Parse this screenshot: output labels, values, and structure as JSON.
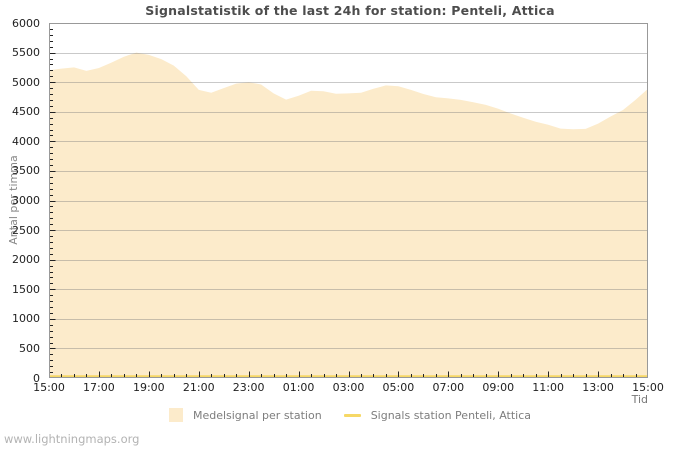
{
  "chart_data": {
    "type": "area",
    "title": "Signalstatistik of the last 24h for station: Penteli, Attica",
    "xlabel": "Tid",
    "ylabel": "Antal per timma",
    "ylim": [
      0,
      6000
    ],
    "y_tick_step": 500,
    "y_minor_tick_step": 100,
    "x_tick_labels": [
      "15:00",
      "17:00",
      "19:00",
      "21:00",
      "23:00",
      "01:00",
      "03:00",
      "05:00",
      "07:00",
      "09:00",
      "11:00",
      "13:00",
      "15:00"
    ],
    "x_span_hours": 24,
    "x_minor_tick_hours": 0.5,
    "grid": "horizontal",
    "legend_position": "bottom-center",
    "x_hours_from_start": [
      0,
      0.5,
      1,
      1.5,
      2,
      2.5,
      3,
      3.5,
      4,
      4.5,
      5,
      5.5,
      6,
      6.5,
      7,
      7.5,
      8,
      8.5,
      9,
      9.5,
      10,
      10.5,
      11,
      11.5,
      12,
      12.5,
      13,
      13.5,
      14,
      14.5,
      15,
      15.5,
      16,
      16.5,
      17,
      17.5,
      18,
      18.5,
      19,
      19.5,
      20,
      20.5,
      21,
      21.5,
      22,
      22.5,
      23,
      23.5,
      24
    ],
    "series": [
      {
        "name": "Medelsignal per station",
        "type": "area",
        "color": "#FCEBCB",
        "values": [
          5200,
          5230,
          5250,
          5190,
          5240,
          5330,
          5430,
          5500,
          5460,
          5390,
          5280,
          5100,
          4870,
          4820,
          4900,
          4975,
          5000,
          4960,
          4810,
          4705,
          4770,
          4855,
          4845,
          4805,
          4810,
          4820,
          4890,
          4945,
          4930,
          4870,
          4800,
          4745,
          4725,
          4700,
          4660,
          4615,
          4550,
          4470,
          4400,
          4330,
          4280,
          4215,
          4205,
          4210,
          4300,
          4420,
          4530,
          4700,
          4890
        ]
      },
      {
        "name": "Signals station Penteli, Attica",
        "type": "line",
        "color": "#F6D866",
        "values": [
          0,
          0,
          0,
          0,
          0,
          0,
          0,
          0,
          0,
          0,
          0,
          0,
          0,
          0,
          0,
          0,
          0,
          0,
          0,
          0,
          0,
          0,
          0,
          0,
          0,
          0,
          0,
          0,
          0,
          0,
          0,
          0,
          0,
          0,
          0,
          0,
          0,
          0,
          0,
          0,
          0,
          0,
          0,
          0,
          0,
          0,
          0,
          0,
          0
        ]
      }
    ],
    "colors": {
      "grid_line": "#cccccc",
      "plot_border": "#999999",
      "tick_mark": "#222222",
      "axis_text": "#222222",
      "title_text": "#4d4d4d",
      "secondary_text": "#7d7d7d"
    }
  },
  "footer": {
    "watermark": "www.lightningmaps.org"
  }
}
